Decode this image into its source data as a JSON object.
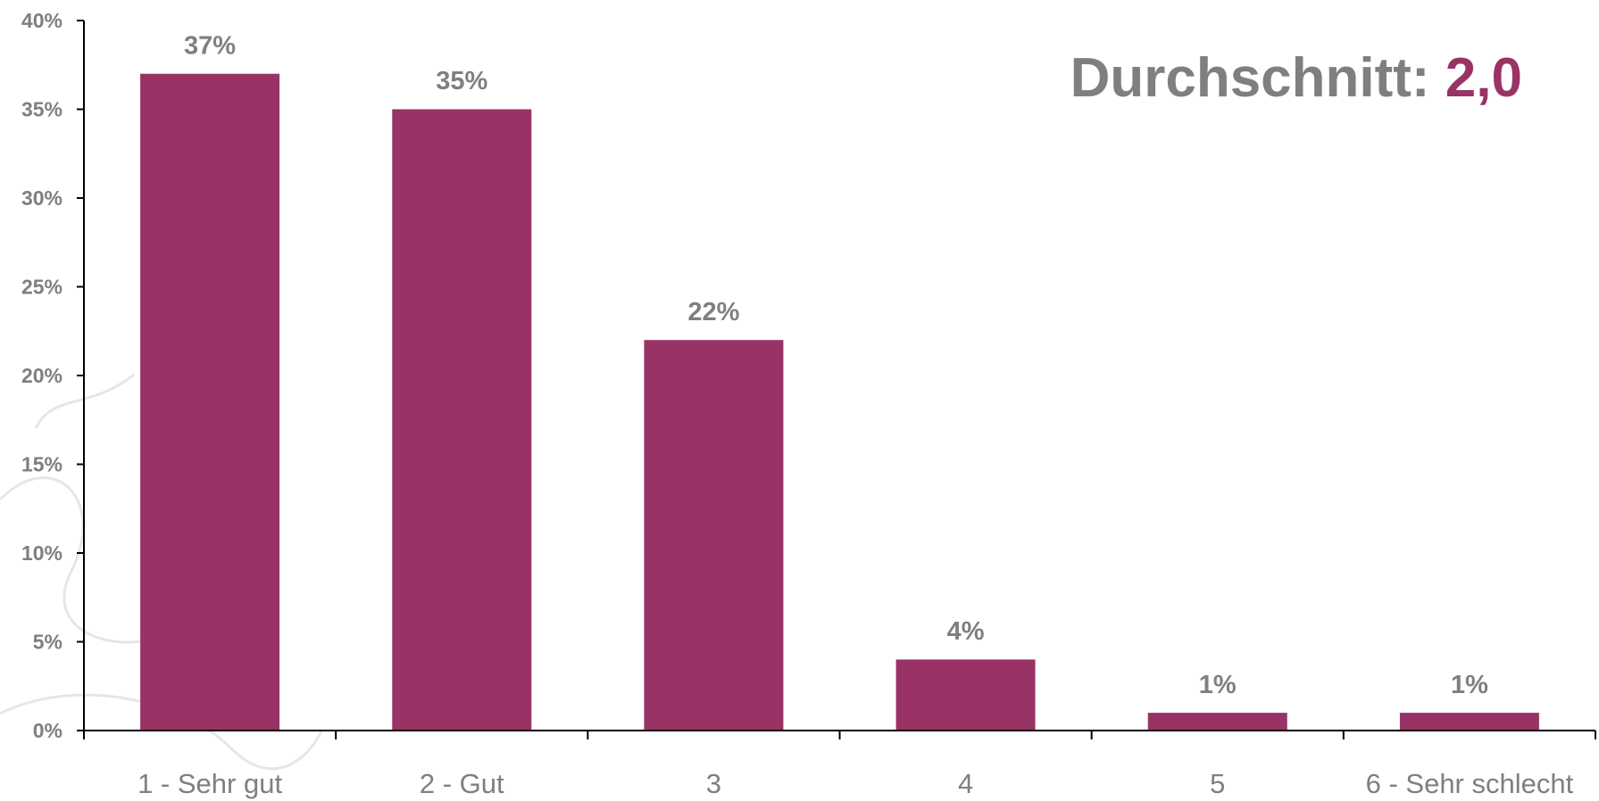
{
  "chart_data": {
    "type": "bar",
    "categories": [
      "1 - Sehr gut",
      "2 - Gut",
      "3",
      "4",
      "5",
      "6 - Sehr schlecht"
    ],
    "values": [
      37,
      35,
      22,
      4,
      1,
      1
    ],
    "value_labels": [
      "37%",
      "35%",
      "22%",
      "4%",
      "1%",
      "1%"
    ],
    "color": "#993366",
    "ylim": [
      0,
      40
    ],
    "yticks": [
      {
        "value": 0,
        "label": "0%"
      },
      {
        "value": 5,
        "label": "5%"
      },
      {
        "value": 10,
        "label": "10%"
      },
      {
        "value": 15,
        "label": "15%"
      },
      {
        "value": 20,
        "label": "20%"
      },
      {
        "value": 25,
        "label": "25%"
      },
      {
        "value": 30,
        "label": "30%"
      },
      {
        "value": 35,
        "label": "35%"
      },
      {
        "value": 40,
        "label": "40%"
      }
    ],
    "grid": false,
    "annotation": {
      "label": "Durchschnitt:",
      "value": "2,0",
      "label_color": "#7f7f7f",
      "value_color": "#993366"
    }
  }
}
